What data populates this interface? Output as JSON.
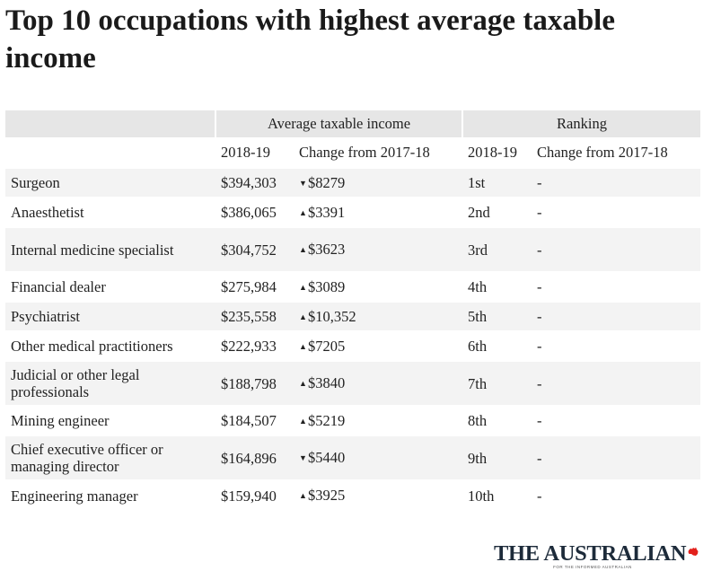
{
  "title": "Top 10 occupations with highest average taxable income",
  "colors": {
    "accent": "#e2211c",
    "header_bg": "#e6e6e6",
    "row_shade": "#f3f3f3",
    "brand": "#1d2b3a"
  },
  "chart_data": {
    "type": "table",
    "group_headers": [
      "Average taxable income",
      "Ranking"
    ],
    "column_headers": [
      "2018-19",
      "Change from 2017-18",
      "2018-19",
      "Change from 2017-18"
    ],
    "rows": [
      {
        "occupation": "Surgeon",
        "income": "$394,303",
        "direction": "down",
        "change": "$8279",
        "rank": "1st",
        "rank_change": "-"
      },
      {
        "occupation": "Anaesthetist",
        "income": "$386,065",
        "direction": "up",
        "change": "$3391",
        "rank": "2nd",
        "rank_change": "-"
      },
      {
        "occupation": "Internal medicine specialist",
        "income": "$304,752",
        "direction": "up",
        "change": "$3623",
        "rank": "3rd",
        "rank_change": "-"
      },
      {
        "occupation": "Financial dealer",
        "income": "$275,984",
        "direction": "up",
        "change": "$3089",
        "rank": "4th",
        "rank_change": "-"
      },
      {
        "occupation": "Psychiatrist",
        "income": "$235,558",
        "direction": "up",
        "change": "$10,352",
        "rank": "5th",
        "rank_change": "-"
      },
      {
        "occupation": "Other medical practitioners",
        "income": "$222,933",
        "direction": "up",
        "change": "$7205",
        "rank": "6th",
        "rank_change": "-"
      },
      {
        "occupation": "Judicial or other legal professionals",
        "income": "$188,798",
        "direction": "up",
        "change": "$3840",
        "rank": "7th",
        "rank_change": "-"
      },
      {
        "occupation": "Mining engineer",
        "income": "$184,507",
        "direction": "up",
        "change": "$5219",
        "rank": "8th",
        "rank_change": "-"
      },
      {
        "occupation": "Chief executive officer or managing director",
        "income": "$164,896",
        "direction": "down",
        "change": "$5440",
        "rank": "9th",
        "rank_change": "-"
      },
      {
        "occupation": "Engineering manager",
        "income": "$159,940",
        "direction": "up",
        "change": "$3925",
        "rank": "10th",
        "rank_change": "-"
      }
    ]
  },
  "brand": {
    "name": "THE AUSTRALIAN",
    "tagline": "FOR THE INFORMED AUSTRALIAN",
    "icon": "australia-map-icon"
  }
}
